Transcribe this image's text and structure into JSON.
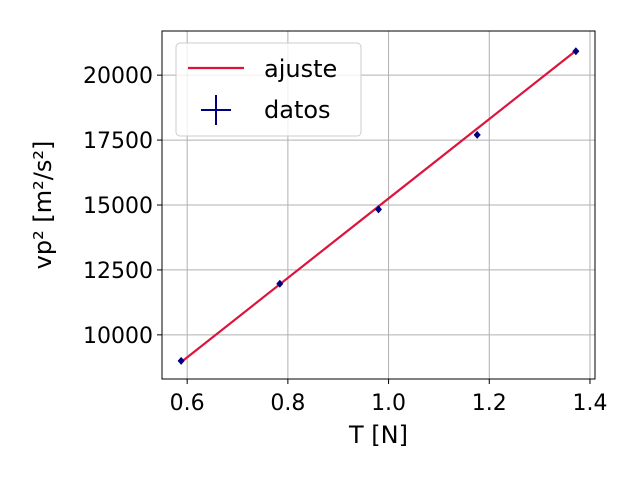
{
  "chart_data": {
    "type": "scatter",
    "xlabel": "T [N]",
    "ylabel": "vp² [m²/s²]",
    "xlim": [
      0.55,
      1.41
    ],
    "ylim": [
      8300,
      21700
    ],
    "xticks": [
      0.6,
      0.8,
      1.0,
      1.2,
      1.4
    ],
    "xtick_labels": [
      "0.6",
      "0.8",
      "1.0",
      "1.2",
      "1.4"
    ],
    "yticks": [
      10000,
      12500,
      15000,
      17500,
      20000
    ],
    "ytick_labels": [
      "10000",
      "12500",
      "15000",
      "17500",
      "20000"
    ],
    "grid": true,
    "legend_position": "top-left",
    "series": [
      {
        "name": "ajuste",
        "kind": "line",
        "color": "#dc143c",
        "x": [
          0.588,
          1.372
        ],
        "y": [
          8950,
          20940
        ]
      },
      {
        "name": "datos",
        "kind": "errorbar",
        "color": "#000080",
        "x": [
          0.588,
          0.784,
          0.98,
          1.176,
          1.372
        ],
        "y": [
          9000,
          11970,
          14830,
          17700,
          20920
        ]
      }
    ]
  }
}
